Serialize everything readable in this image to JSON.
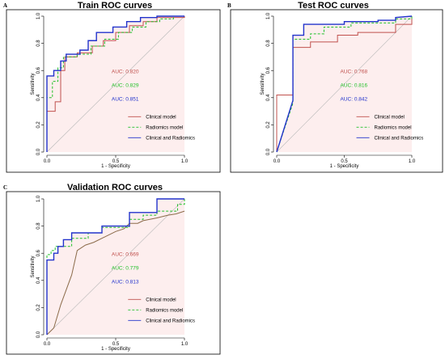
{
  "chart_data": [
    {
      "panel": "A",
      "title": "Train ROC curves",
      "type": "line",
      "xlabel": "1 - Specificity",
      "ylabel": "Sensitivity",
      "xlim": [
        0,
        1
      ],
      "ylim": [
        0,
        1
      ],
      "x_ticks": [
        "0.0",
        "0.5",
        "1.0"
      ],
      "y_ticks": [
        "0.0",
        "0.2",
        "0.4",
        "0.6",
        "0.8",
        "1.0"
      ],
      "auc_labels": [
        "AUC: 0.820",
        "AUC: 0.829",
        "AUC: 0.851"
      ],
      "legend": [
        "Clinical model",
        "Radiomics model",
        "Clinical and Radiomics"
      ],
      "series": [
        {
          "name": "Clinical model",
          "color": "#c0504d",
          "dash": "solid",
          "points": [
            [
              0,
              0
            ],
            [
              0,
              0.3
            ],
            [
              0.06,
              0.3
            ],
            [
              0.06,
              0.37
            ],
            [
              0.1,
              0.37
            ],
            [
              0.1,
              0.6
            ],
            [
              0.13,
              0.6
            ],
            [
              0.13,
              0.7
            ],
            [
              0.22,
              0.7
            ],
            [
              0.22,
              0.73
            ],
            [
              0.33,
              0.73
            ],
            [
              0.33,
              0.78
            ],
            [
              0.41,
              0.78
            ],
            [
              0.41,
              0.82
            ],
            [
              0.5,
              0.82
            ],
            [
              0.5,
              0.88
            ],
            [
              0.6,
              0.88
            ],
            [
              0.6,
              0.93
            ],
            [
              0.7,
              0.93
            ],
            [
              0.7,
              0.96
            ],
            [
              0.8,
              0.96
            ],
            [
              0.8,
              0.99
            ],
            [
              1,
              0.99
            ],
            [
              1,
              1
            ]
          ]
        },
        {
          "name": "Radiomics model",
          "color": "#22c02a",
          "dash": "dashed",
          "points": [
            [
              0,
              0
            ],
            [
              0,
              0.4
            ],
            [
              0.04,
              0.4
            ],
            [
              0.04,
              0.52
            ],
            [
              0.08,
              0.52
            ],
            [
              0.08,
              0.62
            ],
            [
              0.12,
              0.62
            ],
            [
              0.12,
              0.7
            ],
            [
              0.22,
              0.7
            ],
            [
              0.22,
              0.72
            ],
            [
              0.32,
              0.72
            ],
            [
              0.32,
              0.78
            ],
            [
              0.42,
              0.78
            ],
            [
              0.42,
              0.83
            ],
            [
              0.52,
              0.83
            ],
            [
              0.52,
              0.88
            ],
            [
              0.62,
              0.88
            ],
            [
              0.62,
              0.92
            ],
            [
              0.72,
              0.92
            ],
            [
              0.72,
              0.96
            ],
            [
              0.82,
              0.96
            ],
            [
              0.82,
              0.98
            ],
            [
              0.92,
              0.98
            ],
            [
              0.92,
              1
            ],
            [
              1,
              1
            ]
          ]
        },
        {
          "name": "Clinical and Radiomics",
          "color": "#2233cc",
          "dash": "solid",
          "points": [
            [
              0,
              0
            ],
            [
              0,
              0.56
            ],
            [
              0.05,
              0.56
            ],
            [
              0.05,
              0.6
            ],
            [
              0.1,
              0.6
            ],
            [
              0.1,
              0.67
            ],
            [
              0.14,
              0.67
            ],
            [
              0.14,
              0.72
            ],
            [
              0.24,
              0.72
            ],
            [
              0.24,
              0.75
            ],
            [
              0.3,
              0.75
            ],
            [
              0.3,
              0.82
            ],
            [
              0.36,
              0.82
            ],
            [
              0.36,
              0.88
            ],
            [
              0.48,
              0.88
            ],
            [
              0.48,
              0.92
            ],
            [
              0.58,
              0.92
            ],
            [
              0.58,
              0.96
            ],
            [
              0.68,
              0.96
            ],
            [
              0.68,
              0.99
            ],
            [
              0.8,
              0.99
            ],
            [
              0.8,
              1
            ],
            [
              1,
              1
            ]
          ]
        }
      ]
    },
    {
      "panel": "B",
      "title": "Test ROC curves",
      "type": "line",
      "xlabel": "1 - Specificity",
      "ylabel": "Sensitivity",
      "xlim": [
        0,
        1
      ],
      "ylim": [
        0,
        1
      ],
      "x_ticks": [
        "0.0",
        "0.5",
        "1.0"
      ],
      "y_ticks": [
        "0.0",
        "0.2",
        "0.4",
        "0.6",
        "0.8",
        "1.0"
      ],
      "auc_labels": [
        "AUC: 0.768",
        "AUC: 0.816",
        "AUC: 0.842"
      ],
      "legend": [
        "Clinical model",
        "Radiomics model",
        "Clinical and Radiomics"
      ],
      "series": [
        {
          "name": "Clinical model",
          "color": "#c0504d",
          "dash": "solid",
          "points": [
            [
              0,
              0
            ],
            [
              0,
              0.42
            ],
            [
              0.12,
              0.42
            ],
            [
              0.12,
              0.77
            ],
            [
              0.25,
              0.77
            ],
            [
              0.25,
              0.81
            ],
            [
              0.45,
              0.81
            ],
            [
              0.45,
              0.86
            ],
            [
              0.6,
              0.86
            ],
            [
              0.6,
              0.88
            ],
            [
              0.88,
              0.88
            ],
            [
              0.88,
              0.94
            ],
            [
              1,
              0.94
            ],
            [
              1,
              1
            ]
          ]
        },
        {
          "name": "Radiomics model",
          "color": "#22c02a",
          "dash": "dashed",
          "points": [
            [
              0,
              0
            ],
            [
              0.12,
              0.36
            ],
            [
              0.12,
              0.83
            ],
            [
              0.25,
              0.83
            ],
            [
              0.25,
              0.87
            ],
            [
              0.35,
              0.87
            ],
            [
              0.35,
              0.92
            ],
            [
              0.55,
              0.92
            ],
            [
              0.55,
              0.95
            ],
            [
              0.88,
              0.95
            ],
            [
              0.88,
              0.98
            ],
            [
              1,
              0.98
            ],
            [
              1,
              1
            ]
          ]
        },
        {
          "name": "Clinical and Radiomics",
          "color": "#2233cc",
          "dash": "solid",
          "points": [
            [
              0,
              0
            ],
            [
              0.12,
              0.38
            ],
            [
              0.12,
              0.86
            ],
            [
              0.2,
              0.86
            ],
            [
              0.2,
              0.94
            ],
            [
              0.5,
              0.94
            ],
            [
              0.5,
              0.96
            ],
            [
              0.75,
              0.96
            ],
            [
              0.75,
              0.97
            ],
            [
              0.88,
              0.97
            ],
            [
              0.88,
              0.99
            ],
            [
              1,
              1
            ]
          ]
        }
      ]
    },
    {
      "panel": "C",
      "title": "Validation ROC curves",
      "type": "line",
      "xlabel": "1 - Specificity",
      "ylabel": "Sensitivity",
      "xlim": [
        0,
        1
      ],
      "ylim": [
        0,
        1
      ],
      "x_ticks": [
        "0.0",
        "0.5",
        "1.0"
      ],
      "y_ticks": [
        "0.0",
        "0.2",
        "0.4",
        "0.6",
        "0.8",
        "1.0"
      ],
      "auc_labels": [
        "AUC: 0.669",
        "AUC: 0.779",
        "AUC: 0.813"
      ],
      "legend": [
        "Clinical model",
        "Radiomics model",
        "Clinical and Radiomics"
      ],
      "series": [
        {
          "name": "Clinical model",
          "color": "#8b6b4a",
          "dash": "solid",
          "points": [
            [
              0,
              0
            ],
            [
              0.05,
              0.05
            ],
            [
              0.1,
              0.22
            ],
            [
              0.14,
              0.33
            ],
            [
              0.18,
              0.44
            ],
            [
              0.22,
              0.62
            ],
            [
              0.28,
              0.66
            ],
            [
              0.34,
              0.68
            ],
            [
              0.42,
              0.72
            ],
            [
              0.5,
              0.76
            ],
            [
              0.56,
              0.78
            ],
            [
              0.6,
              0.82
            ],
            [
              0.66,
              0.82
            ],
            [
              0.7,
              0.84
            ],
            [
              0.8,
              0.86
            ],
            [
              0.88,
              0.88
            ],
            [
              0.94,
              0.89
            ],
            [
              1,
              0.91
            ]
          ]
        },
        {
          "name": "Radiomics model",
          "color": "#22c02a",
          "dash": "dashed",
          "points": [
            [
              0,
              0
            ],
            [
              0,
              0.59
            ],
            [
              0.03,
              0.59
            ],
            [
              0.03,
              0.62
            ],
            [
              0.06,
              0.62
            ],
            [
              0.06,
              0.65
            ],
            [
              0.18,
              0.65
            ],
            [
              0.18,
              0.71
            ],
            [
              0.3,
              0.71
            ],
            [
              0.3,
              0.75
            ],
            [
              0.4,
              0.75
            ],
            [
              0.4,
              0.79
            ],
            [
              0.6,
              0.79
            ],
            [
              0.6,
              0.85
            ],
            [
              0.7,
              0.85
            ],
            [
              0.7,
              0.88
            ],
            [
              0.8,
              0.88
            ],
            [
              0.8,
              0.91
            ],
            [
              0.95,
              0.91
            ],
            [
              0.95,
              0.96
            ],
            [
              1,
              0.96
            ],
            [
              1,
              1
            ]
          ]
        },
        {
          "name": "Clinical and Radiomics",
          "color": "#2233cc",
          "dash": "solid",
          "points": [
            [
              0,
              0
            ],
            [
              0,
              0.55
            ],
            [
              0.05,
              0.55
            ],
            [
              0.05,
              0.6
            ],
            [
              0.08,
              0.6
            ],
            [
              0.08,
              0.65
            ],
            [
              0.12,
              0.65
            ],
            [
              0.12,
              0.7
            ],
            [
              0.18,
              0.7
            ],
            [
              0.18,
              0.75
            ],
            [
              0.4,
              0.75
            ],
            [
              0.4,
              0.8
            ],
            [
              0.6,
              0.8
            ],
            [
              0.6,
              0.9
            ],
            [
              0.8,
              0.9
            ],
            [
              0.8,
              1
            ],
            [
              1,
              1
            ]
          ]
        }
      ]
    }
  ]
}
